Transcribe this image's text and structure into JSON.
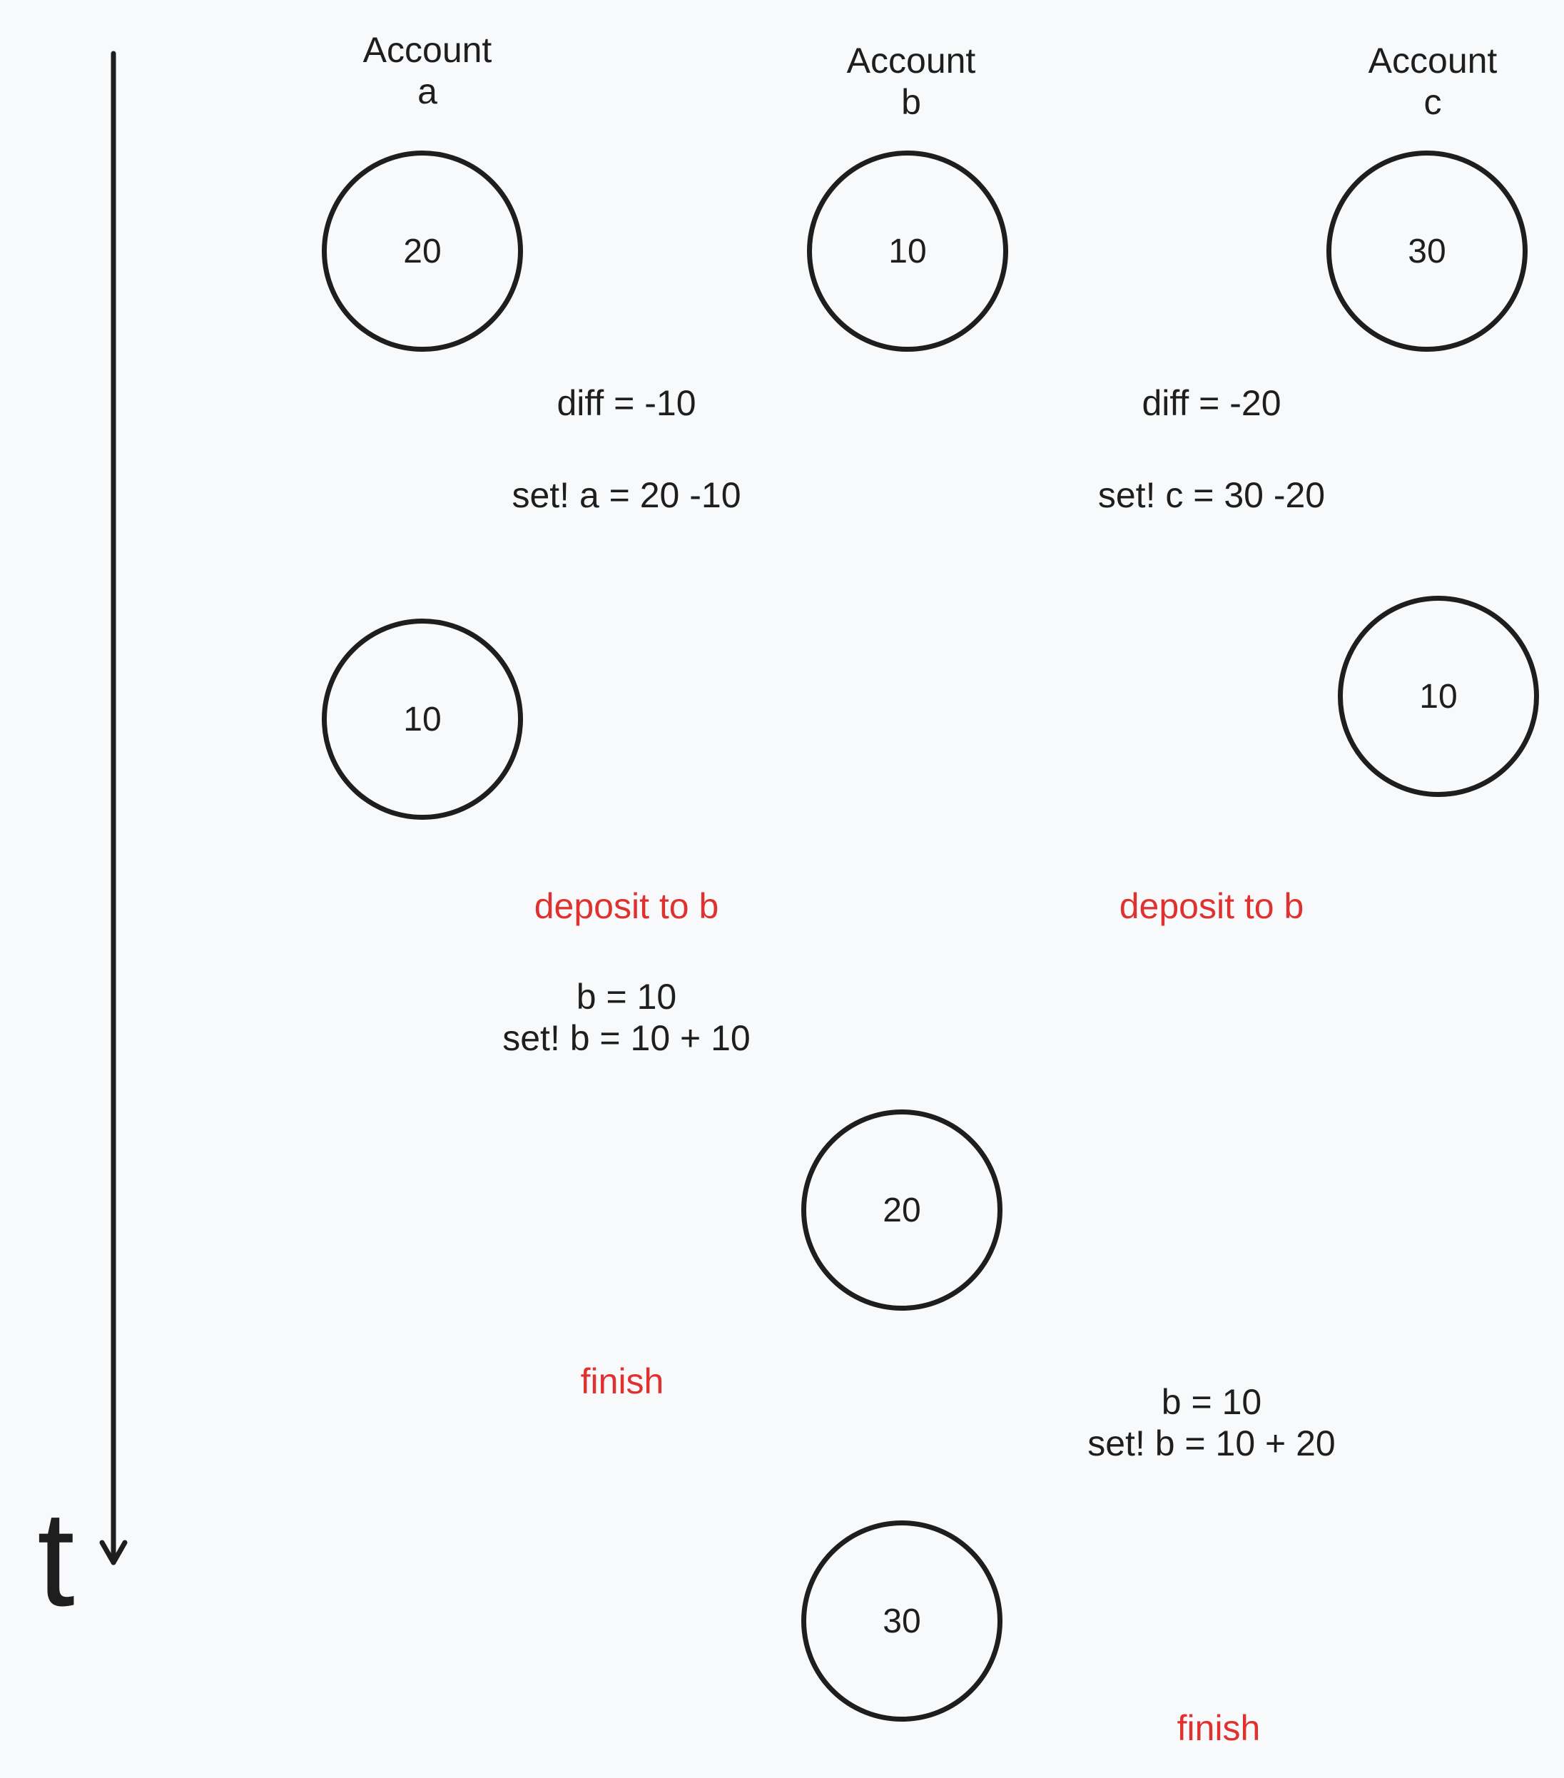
{
  "time_axis": {
    "label": "t"
  },
  "accounts": {
    "a": {
      "line1": "Account",
      "line2": "a"
    },
    "b": {
      "line1": "Account",
      "line2": "b"
    },
    "c": {
      "line1": "Account",
      "line2": "c"
    }
  },
  "states": {
    "a_initial": "20",
    "b_initial": "10",
    "c_initial": "30",
    "a_after": "10",
    "c_after": "10",
    "b_after_first": "20",
    "b_final": "30"
  },
  "transfer_a": {
    "diff": "diff = -10",
    "set": "set! a = 20 -10",
    "deposit": "deposit to b",
    "read": "b = 10",
    "write": "set! b = 10 + 10",
    "finish": "finish"
  },
  "transfer_c": {
    "diff": "diff = -20",
    "set": "set! c = 30 -20",
    "deposit": "deposit to b",
    "read": "b = 10",
    "write": "set! b = 10 + 20",
    "finish": "finish"
  },
  "colors": {
    "ink": "#1e1e1e",
    "highlight": "#e03131",
    "background": "#f8f9fa"
  }
}
